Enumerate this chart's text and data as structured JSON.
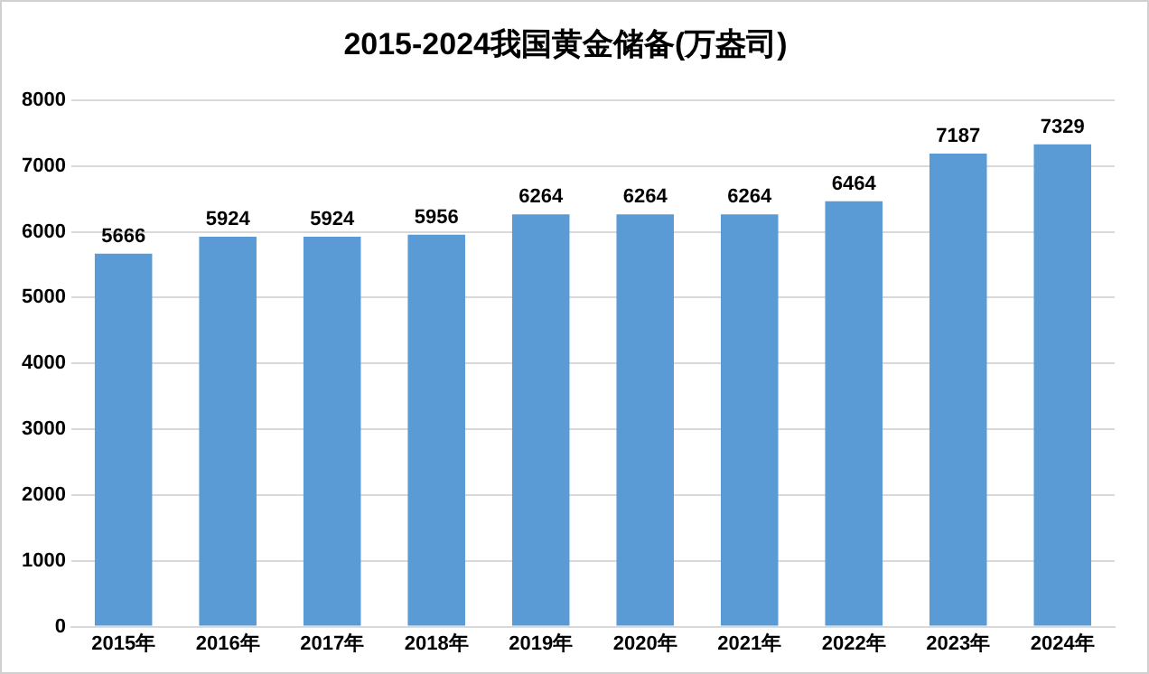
{
  "chart_data": {
    "type": "bar",
    "title": "2015-2024我国黄金储备(万盎司)",
    "categories": [
      "2015年",
      "2016年",
      "2017年",
      "2018年",
      "2019年",
      "2020年",
      "2021年",
      "2022年",
      "2023年",
      "2024年"
    ],
    "values": [
      5666,
      5924,
      5924,
      5956,
      6264,
      6264,
      6264,
      6464,
      7187,
      7329
    ],
    "color": "#5b9bd5",
    "ylim": [
      0,
      8000
    ],
    "yticks": [
      0,
      1000,
      2000,
      3000,
      4000,
      5000,
      6000,
      7000,
      8000
    ],
    "grid": "y",
    "data_labels": true,
    "legend": false
  }
}
